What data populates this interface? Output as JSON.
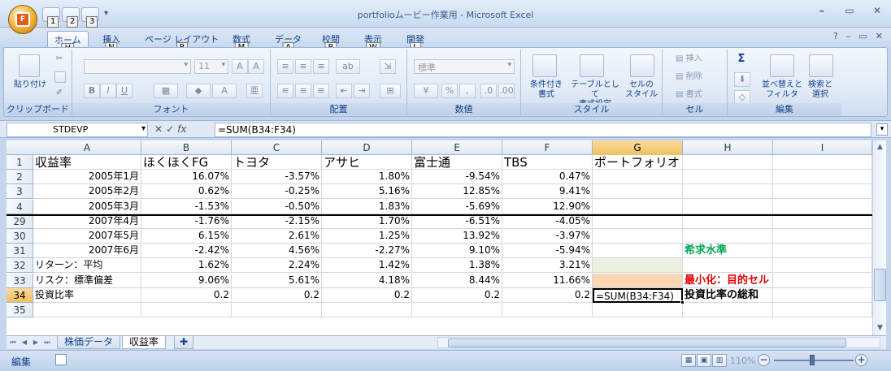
{
  "window": {
    "title": "portfolioムービー作業用 - Microsoft Excel",
    "office_logo": "F",
    "qat_keytips": [
      "1",
      "2",
      "3"
    ]
  },
  "ribbon_tabs": [
    {
      "label": "ホーム",
      "keytip": "H",
      "active": true
    },
    {
      "label": "挿入",
      "keytip": "N"
    },
    {
      "label": "ページ レイアウト",
      "keytip": "P"
    },
    {
      "label": "数式",
      "keytip": "M"
    },
    {
      "label": "データ",
      "keytip": "A"
    },
    {
      "label": "校閲",
      "keytip": "R"
    },
    {
      "label": "表示",
      "keytip": "W"
    },
    {
      "label": "開発",
      "keytip": "L"
    }
  ],
  "ribbon": {
    "clipboard": {
      "paste": "貼り付け",
      "label": "クリップボード"
    },
    "font": {
      "name": "",
      "size": "11",
      "label": "フォント"
    },
    "alignment": {
      "label": "配置"
    },
    "number": {
      "format": "標準",
      "label": "数値"
    },
    "styles": {
      "conditional": "条件付き\n書式",
      "table": "テーブルとして\n書式設定",
      "cell": "セルの\nスタイル",
      "label": "スタイル"
    },
    "cells": {
      "insert": "挿入",
      "delete": "削除",
      "format": "書式",
      "label": "セル"
    },
    "editing": {
      "sort": "並べ替えと\nフィルタ",
      "find": "検索と\n選択",
      "label": "編集"
    }
  },
  "formula_bar": {
    "name_box": "STDEVP",
    "formula": "=SUM(B34:F34)"
  },
  "columns": [
    "A",
    "B",
    "C",
    "D",
    "E",
    "F",
    "G",
    "H",
    "I"
  ],
  "selected_column": "G",
  "rows": [
    {
      "num": "1",
      "cells": [
        "収益率",
        "ほくほくFG",
        "トヨタ",
        "アサヒ",
        "富士通",
        "TBS",
        "ポートフォリオ",
        "",
        ""
      ],
      "header": true
    },
    {
      "num": "2",
      "cells": [
        "2005年1月",
        "16.07%",
        "-3.57%",
        "1.80%",
        "-9.54%",
        "0.47%",
        "",
        "",
        ""
      ]
    },
    {
      "num": "3",
      "cells": [
        "2005年2月",
        "0.62%",
        "-0.25%",
        "5.16%",
        "12.85%",
        "9.41%",
        "",
        "",
        ""
      ]
    },
    {
      "num": "4",
      "cells": [
        "2005年3月",
        "-1.53%",
        "-0.50%",
        "1.83%",
        "-5.69%",
        "12.90%",
        "",
        "",
        ""
      ]
    },
    {
      "num": "29",
      "cells": [
        "2007年4月",
        "-1.76%",
        "-2.15%",
        "1.70%",
        "-6.51%",
        "-4.05%",
        "",
        "",
        ""
      ]
    },
    {
      "num": "30",
      "cells": [
        "2007年5月",
        "6.15%",
        "2.61%",
        "1.25%",
        "13.92%",
        "-3.97%",
        "",
        "",
        ""
      ]
    },
    {
      "num": "31",
      "cells": [
        "2007年6月",
        "-2.42%",
        "4.56%",
        "-2.27%",
        "9.10%",
        "-5.94%",
        "",
        "希求水準",
        ""
      ]
    },
    {
      "num": "32",
      "cells": [
        "リターン：平均",
        "1.62%",
        "2.24%",
        "1.42%",
        "1.38%",
        "3.21%",
        "",
        "",
        ""
      ]
    },
    {
      "num": "33",
      "cells": [
        "リスク：標準偏差",
        "9.06%",
        "5.61%",
        "4.18%",
        "8.44%",
        "11.66%",
        "",
        "最小化：目的セル",
        ""
      ]
    },
    {
      "num": "34",
      "cells": [
        "投資比率",
        "0.2",
        "0.2",
        "0.2",
        "0.2",
        "0.2",
        "=SUM(B34:F34)",
        "投資比率の総和",
        ""
      ]
    },
    {
      "num": "35",
      "cells": [
        "",
        "",
        "",
        "",
        "",
        "",
        "",
        "",
        ""
      ]
    }
  ],
  "sheets": [
    {
      "name": "株価データ",
      "active": false
    },
    {
      "name": "収益率",
      "active": true
    }
  ],
  "status": {
    "mode": "編集",
    "zoom": "110%"
  },
  "colors": {
    "note_green": "#00a651",
    "note_red": "#e60000",
    "fill_green": "#ebf1de",
    "fill_peach": "#fcd5b4"
  }
}
